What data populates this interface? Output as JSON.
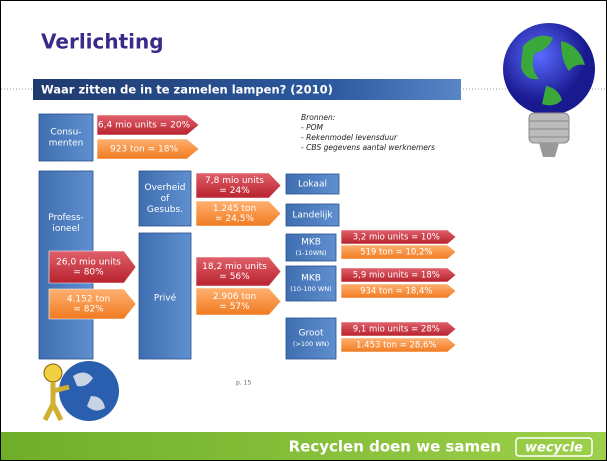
{
  "header": {
    "title": "Verlichting",
    "subtitle": "Waar zitten de in te zamelen lampen? (2010)"
  },
  "sources": [
    "Bronnen:",
    "- POM",
    "- Rekenmodel levensduur",
    "- CBS gegevens aantal werknemers"
  ],
  "boxes": [
    {
      "lines": [
        "Consu-",
        "menten"
      ]
    },
    {
      "lines": [
        "Profess-",
        "ioneel"
      ]
    },
    {
      "lines": [
        "Overheid",
        "of",
        "Gesubs."
      ]
    },
    {
      "lines": [
        "Privé"
      ]
    },
    {
      "lines": [
        "Lokaal"
      ]
    },
    {
      "lines": [
        "Landelijk"
      ]
    },
    {
      "lines": [
        "MKB",
        "(1-10WN)"
      ]
    },
    {
      "lines": [
        "MKB",
        "(10-100 WN)"
      ]
    },
    {
      "lines": [
        "Groot",
        "(>100 WN)"
      ]
    }
  ],
  "arrows": [
    {
      "units": [
        "6,4 mio units = 20%"
      ],
      "tons": [
        "923 ton = 18%"
      ]
    },
    {
      "units": [
        "26,0 mio units",
        "= 80%"
      ],
      "tons": [
        "4.152 ton",
        "= 82%"
      ]
    },
    {
      "units": [
        "7,8 mio units",
        "= 24%"
      ],
      "tons": [
        "1.245 ton",
        "= 24,5%"
      ]
    },
    {
      "units": [
        "18,2 mio units",
        "= 56%"
      ],
      "tons": [
        "2.906 ton",
        "= 57%"
      ]
    },
    {
      "units": [
        "3,2 mio units = 10%"
      ],
      "tons": [
        "519 ton = 10,2%"
      ]
    },
    {
      "units": [
        "5,9 mio units = 18%"
      ],
      "tons": [
        "934 ton = 18,4%"
      ]
    },
    {
      "units": [
        "9,1 mio units = 28%"
      ],
      "tons": [
        "1.453 ton = 28,6%"
      ]
    }
  ],
  "page_number": "p. 15",
  "footer": {
    "slogan": "Recyclen doen we samen",
    "logo": "wecycle"
  }
}
